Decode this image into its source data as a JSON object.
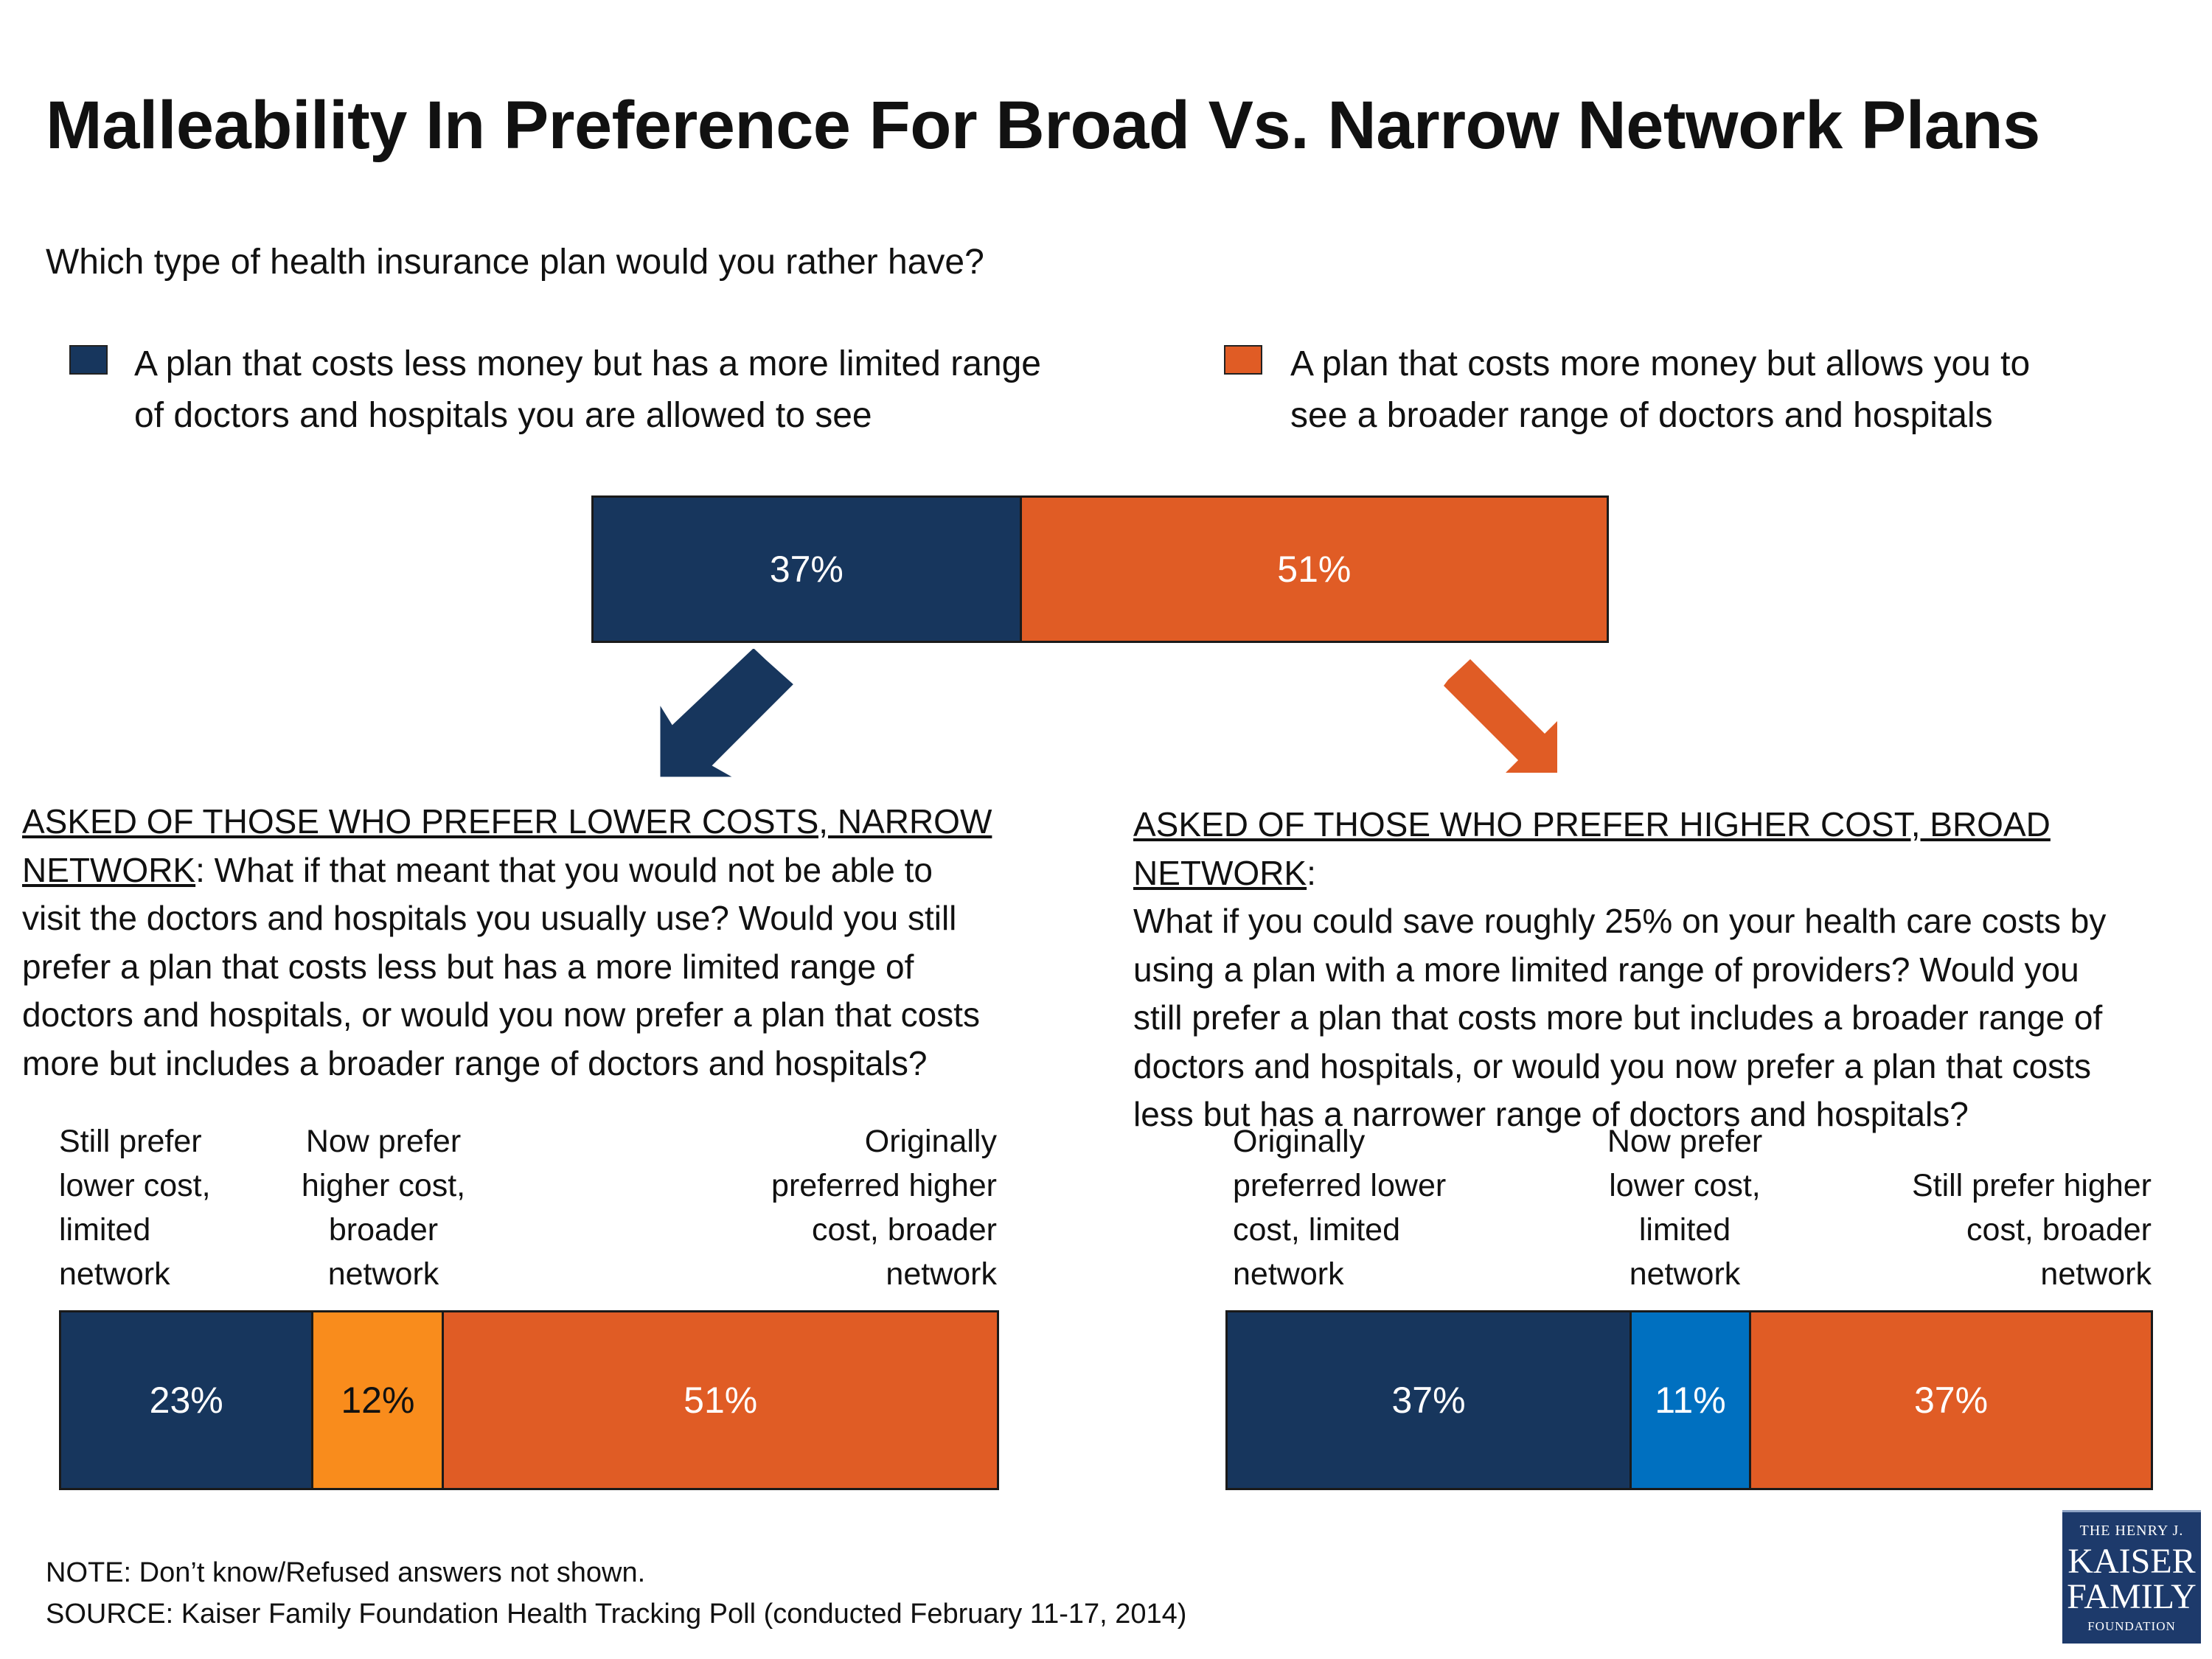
{
  "title": "Malleability In Preference For Broad Vs. Narrow Network Plans",
  "question": "Which type of health insurance plan would you rather have?",
  "legend": [
    {
      "line1": "A plan that costs less money but has a more limited range",
      "line2": "of doctors and hospitals you are allowed to see",
      "color": "#17365d"
    },
    {
      "line1": "A plan that costs more money but allows you to",
      "line2": "see a broader range of doctors and hospitals",
      "color": "#e05c25"
    }
  ],
  "colors": {
    "navy": "#17365d",
    "orange": "#e05c25",
    "light_orange": "#f98c1c",
    "blue": "#0070c0"
  },
  "left_panel": {
    "header_underlined_1": "ASKED OF THOSE WHO PREFER LOWER COSTS, NARROW",
    "header_underlined_2": "NETWORK",
    "line2_rest": ": What if that meant that you would not be able to",
    "line3": "visit the doctors and hospitals you usually use? Would you still",
    "line4": "prefer a plan that costs less but has a more limited range of",
    "line5": "doctors and hospitals, or would you now prefer a plan that costs",
    "line6": "more but includes a broader range of doctors and hospitals?",
    "labels": [
      [
        "Still prefer",
        "lower cost,",
        "limited",
        "network"
      ],
      [
        "Now prefer",
        "higher cost,",
        "broader",
        "network"
      ],
      [
        "Originally",
        "preferred higher",
        "cost, broader",
        "network"
      ]
    ]
  },
  "right_panel": {
    "header_underlined": "ASKED OF THOSE WHO PREFER HIGHER COST, BROAD NETWORK",
    "header_colon": ":",
    "line2": "What if you could save roughly 25% on your health care costs by",
    "line3": "using a plan with a more limited range of providers? Would you",
    "line4": "still prefer a plan that costs more but includes a broader range of",
    "line5": "doctors and hospitals, or would you now prefer a plan that costs",
    "line6": "less but has a narrower range of doctors and hospitals?",
    "labels": [
      [
        "Originally",
        "preferred lower",
        "cost, limited",
        "network"
      ],
      [
        "Now prefer",
        "lower cost,",
        "limited",
        "network"
      ],
      [
        "Still prefer higher",
        "cost, broader",
        "network"
      ]
    ]
  },
  "chart_data": [
    {
      "type": "bar",
      "orientation": "horizontal-stacked",
      "title": "Which type of health insurance plan would you rather have?",
      "categories": [
        "Lower cost, limited network",
        "Higher cost, broader network"
      ],
      "values": [
        37,
        51
      ],
      "value_labels": [
        "37%",
        "51%"
      ],
      "colors": [
        "#17365d",
        "#e05c25"
      ]
    },
    {
      "type": "bar",
      "orientation": "horizontal-stacked",
      "title": "Asked of those who prefer lower costs, narrow network",
      "categories": [
        "Still prefer lower cost, limited network",
        "Now prefer higher cost, broader network",
        "Originally preferred higher cost, broader network"
      ],
      "values": [
        23,
        12,
        51
      ],
      "value_labels": [
        "23%",
        "12%",
        "51%"
      ],
      "colors": [
        "#17365d",
        "#f98c1c",
        "#e05c25"
      ]
    },
    {
      "type": "bar",
      "orientation": "horizontal-stacked",
      "title": "Asked of those who prefer higher cost, broad network",
      "categories": [
        "Originally preferred lower cost, limited network",
        "Now prefer lower cost, limited network",
        "Still prefer higher cost, broader network"
      ],
      "values": [
        37,
        11,
        37
      ],
      "value_labels": [
        "37%",
        "11%",
        "37%"
      ],
      "colors": [
        "#17365d",
        "#0070c0",
        "#e05c25"
      ]
    }
  ],
  "note": "NOTE: Don’t know/Refused answers not shown.",
  "source": "SOURCE: Kaiser Family Foundation Health Tracking Poll (conducted February 11-17, 2014)",
  "logo": {
    "line1": "THE HENRY J.",
    "line2": "KAISER",
    "line3": "FAMILY",
    "line4": "FOUNDATION"
  }
}
